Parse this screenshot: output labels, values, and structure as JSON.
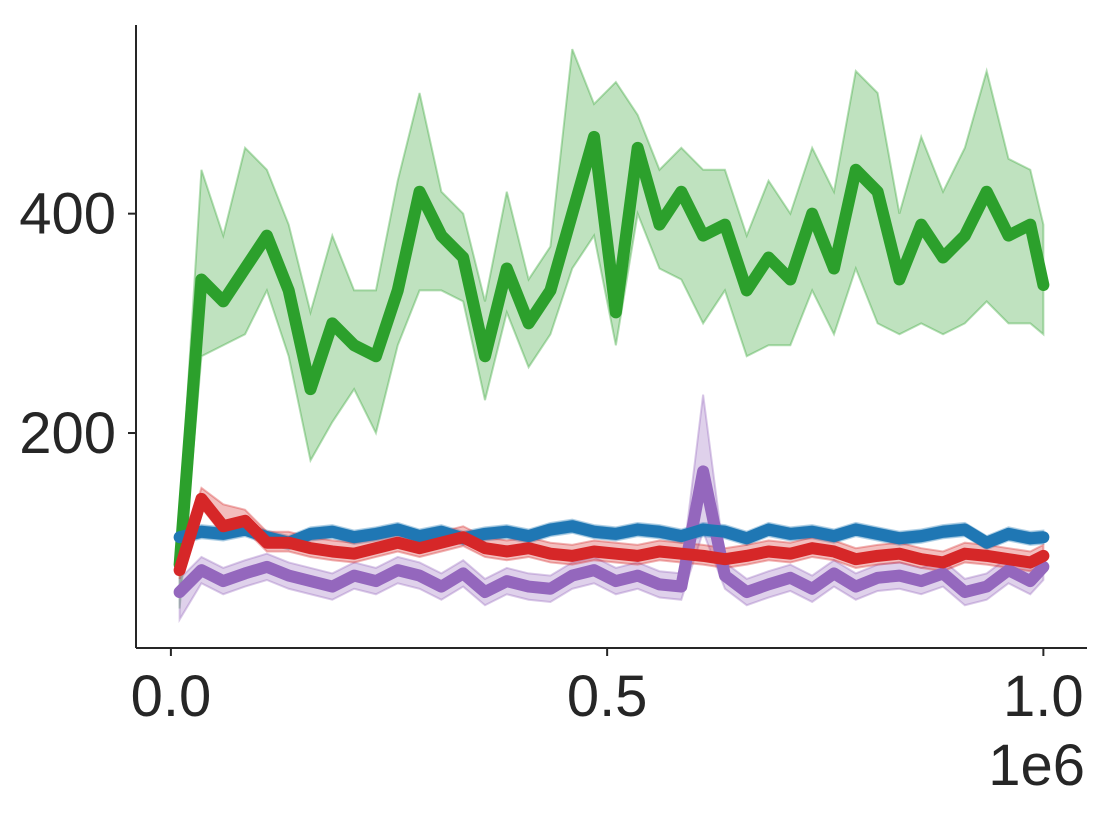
{
  "chart_data": {
    "type": "line",
    "x": [
      0.01,
      0.035,
      0.06,
      0.085,
      0.11,
      0.135,
      0.16,
      0.185,
      0.21,
      0.235,
      0.26,
      0.285,
      0.31,
      0.335,
      0.36,
      0.385,
      0.41,
      0.435,
      0.46,
      0.485,
      0.51,
      0.535,
      0.56,
      0.585,
      0.61,
      0.635,
      0.66,
      0.685,
      0.71,
      0.735,
      0.76,
      0.785,
      0.81,
      0.835,
      0.86,
      0.885,
      0.91,
      0.935,
      0.96,
      0.985,
      1.0
    ],
    "x_offset_label": "1e6",
    "xlim": [
      -0.04,
      1.05
    ],
    "xticks": [
      {
        "value": 0,
        "label": "0.0"
      },
      0.5,
      {
        "value": 1,
        "label": "1.0"
      }
    ],
    "ylim": [
      4,
      572
    ],
    "yticks": [
      200,
      400
    ],
    "series": [
      {
        "color": "#2ca02c",
        "values": [
          80,
          340,
          320,
          350,
          380,
          330,
          240,
          300,
          280,
          270,
          330,
          420,
          380,
          360,
          270,
          350,
          300,
          330,
          400,
          470,
          310,
          460,
          390,
          420,
          380,
          390,
          330,
          360,
          340,
          400,
          350,
          440,
          420,
          340,
          390,
          360,
          380,
          420,
          380,
          390,
          335
        ],
        "lower": [
          40,
          270,
          280,
          290,
          330,
          270,
          175,
          210,
          240,
          200,
          280,
          330,
          330,
          320,
          230,
          310,
          260,
          290,
          350,
          380,
          280,
          400,
          350,
          340,
          300,
          330,
          270,
          280,
          280,
          330,
          290,
          350,
          300,
          290,
          300,
          290,
          300,
          320,
          300,
          300,
          290
        ],
        "upper": [
          120,
          440,
          380,
          460,
          440,
          390,
          310,
          380,
          330,
          330,
          430,
          510,
          420,
          400,
          320,
          420,
          340,
          370,
          550,
          500,
          520,
          490,
          440,
          460,
          440,
          440,
          380,
          430,
          400,
          460,
          420,
          530,
          510,
          400,
          470,
          420,
          460,
          530,
          450,
          440,
          390
        ]
      },
      {
        "color": "#9467bd",
        "values": [
          55,
          75,
          65,
          72,
          78,
          70,
          65,
          60,
          70,
          65,
          75,
          70,
          60,
          72,
          55,
          65,
          60,
          58,
          70,
          75,
          65,
          70,
          62,
          60,
          165,
          70,
          55,
          62,
          68,
          58,
          72,
          60,
          68,
          70,
          65,
          72,
          55,
          60,
          75,
          65,
          78
        ],
        "lower": [
          30,
          63,
          53,
          60,
          66,
          58,
          53,
          48,
          58,
          53,
          63,
          58,
          48,
          60,
          43,
          53,
          48,
          46,
          58,
          63,
          53,
          58,
          50,
          48,
          110,
          58,
          43,
          50,
          56,
          46,
          60,
          48,
          56,
          58,
          53,
          60,
          43,
          48,
          63,
          53,
          66
        ],
        "upper": [
          67,
          87,
          77,
          84,
          90,
          82,
          77,
          72,
          82,
          77,
          87,
          82,
          72,
          84,
          67,
          77,
          72,
          70,
          82,
          87,
          77,
          82,
          74,
          72,
          235,
          82,
          67,
          74,
          80,
          70,
          84,
          72,
          80,
          82,
          77,
          84,
          67,
          72,
          87,
          77,
          90
        ]
      },
      {
        "color": "#1f77b4",
        "values": [
          105,
          110,
          108,
          112,
          105,
          100,
          108,
          110,
          105,
          108,
          112,
          106,
          110,
          104,
          108,
          110,
          106,
          112,
          115,
          110,
          108,
          112,
          110,
          106,
          112,
          110,
          104,
          112,
          108,
          110,
          106,
          112,
          108,
          104,
          106,
          110,
          112,
          100,
          108,
          104,
          105
        ],
        "lower": [
          99,
          104,
          102,
          106,
          99,
          94,
          102,
          104,
          99,
          102,
          106,
          100,
          104,
          98,
          102,
          104,
          100,
          106,
          109,
          104,
          102,
          106,
          104,
          100,
          106,
          104,
          98,
          106,
          102,
          104,
          100,
          106,
          102,
          98,
          100,
          104,
          106,
          94,
          102,
          98,
          99
        ],
        "upper": [
          111,
          116,
          114,
          118,
          111,
          106,
          114,
          116,
          111,
          114,
          118,
          112,
          116,
          110,
          114,
          116,
          112,
          118,
          121,
          116,
          114,
          118,
          116,
          112,
          118,
          116,
          110,
          118,
          114,
          116,
          112,
          118,
          114,
          110,
          112,
          116,
          118,
          106,
          114,
          110,
          111
        ]
      },
      {
        "color": "#d62728",
        "values": [
          75,
          140,
          115,
          120,
          100,
          100,
          95,
          92,
          90,
          95,
          100,
          95,
          100,
          105,
          95,
          92,
          95,
          90,
          88,
          92,
          90,
          88,
          92,
          90,
          88,
          85,
          88,
          92,
          90,
          95,
          92,
          85,
          88,
          90,
          85,
          82,
          90,
          88,
          85,
          82,
          88
        ],
        "lower": [
          67,
          132,
          107,
          112,
          92,
          92,
          87,
          84,
          82,
          87,
          92,
          87,
          92,
          97,
          87,
          84,
          87,
          82,
          80,
          84,
          82,
          80,
          84,
          82,
          80,
          77,
          80,
          84,
          82,
          87,
          84,
          77,
          80,
          82,
          77,
          74,
          82,
          80,
          77,
          74,
          80
        ],
        "upper": [
          85,
          150,
          135,
          130,
          110,
          110,
          105,
          102,
          100,
          105,
          115,
          105,
          110,
          115,
          105,
          102,
          105,
          100,
          98,
          102,
          100,
          98,
          102,
          100,
          98,
          95,
          98,
          102,
          100,
          105,
          102,
          95,
          98,
          100,
          95,
          92,
          100,
          98,
          95,
          92,
          98
        ]
      }
    ]
  }
}
